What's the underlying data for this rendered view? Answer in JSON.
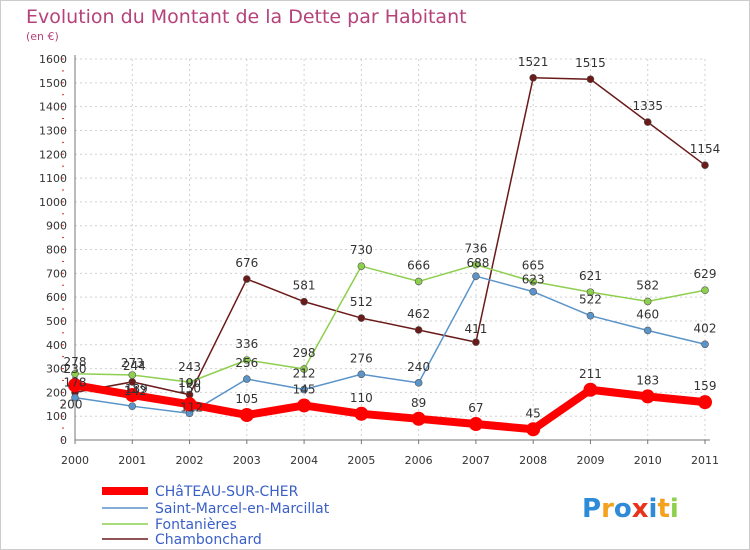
{
  "chart_data": {
    "type": "line",
    "title": "Evolution du Montant de la Dette par Habitant",
    "subtitle": "(en €)",
    "x": [
      "2000",
      "2001",
      "2002",
      "2003",
      "2004",
      "2005",
      "2006",
      "2007",
      "2008",
      "2009",
      "2010",
      "2011"
    ],
    "ylim": [
      0,
      1600
    ],
    "yticks": [
      "0",
      "100",
      "200",
      "300",
      "400",
      "500",
      "600",
      "700",
      "800",
      "900",
      "1000",
      "1100",
      "1200",
      "1300",
      "1400",
      "1500",
      "1600"
    ],
    "grid": true,
    "legend_position": "bottom-left",
    "series": [
      {
        "name": "Chambonchard",
        "color": "#6b1a1a",
        "values": [
          200,
          244,
          190,
          676,
          581,
          512,
          462,
          411,
          1521,
          1515,
          1335,
          1154
        ],
        "labels": [
          "200",
          "244",
          "190",
          "676",
          "581",
          "512",
          "462",
          "411",
          "1521",
          "1515",
          "1335",
          "1154"
        ],
        "segments": [
          [
            0,
            7
          ],
          [
            7,
            11
          ]
        ]
      },
      {
        "name": "Saint-Marcel-en-Marcillat",
        "color": "#5b94c9",
        "values": [
          178,
          142,
          112,
          256,
          212,
          276,
          240,
          688,
          623,
          522,
          460,
          402
        ],
        "labels": [
          "178",
          "142",
          "112",
          "256",
          "212",
          "276",
          "240",
          "688",
          "623",
          "522",
          "460",
          "402"
        ]
      },
      {
        "name": "Fontanières",
        "color": "#8ecf4f",
        "values": [
          278,
          273,
          243,
          336,
          298,
          730,
          666,
          736,
          665,
          621,
          582,
          629
        ],
        "labels": [
          "278",
          "273",
          "243",
          "336",
          "298",
          "730",
          "666",
          "736",
          "665",
          "621",
          "582",
          "629"
        ]
      },
      {
        "name": "CHâTEAU-SUR-CHER",
        "color": "#ff0000",
        "values": [
          230,
          189,
          150,
          105,
          145,
          110,
          89,
          67,
          45,
          211,
          183,
          159
        ],
        "labels": [
          "230",
          "189",
          "150",
          "105",
          "145",
          "110",
          "89",
          "67",
          "45",
          "211",
          "183",
          "159"
        ],
        "thick": true
      }
    ],
    "legend": [
      "CHâTEAU-SUR-CHER",
      "Saint-Marcel-en-Marcillat",
      "Fontanières",
      "Chambonchard"
    ]
  },
  "logo": {
    "letters": [
      "P",
      "r",
      "o",
      "x",
      "i",
      "t",
      "i"
    ],
    "colors": [
      "#2e8bd8",
      "#f4a11d",
      "#2e8bd8",
      "#e8321c",
      "#2e8bd8",
      "#f4a11d",
      "#8ecf4f"
    ]
  }
}
